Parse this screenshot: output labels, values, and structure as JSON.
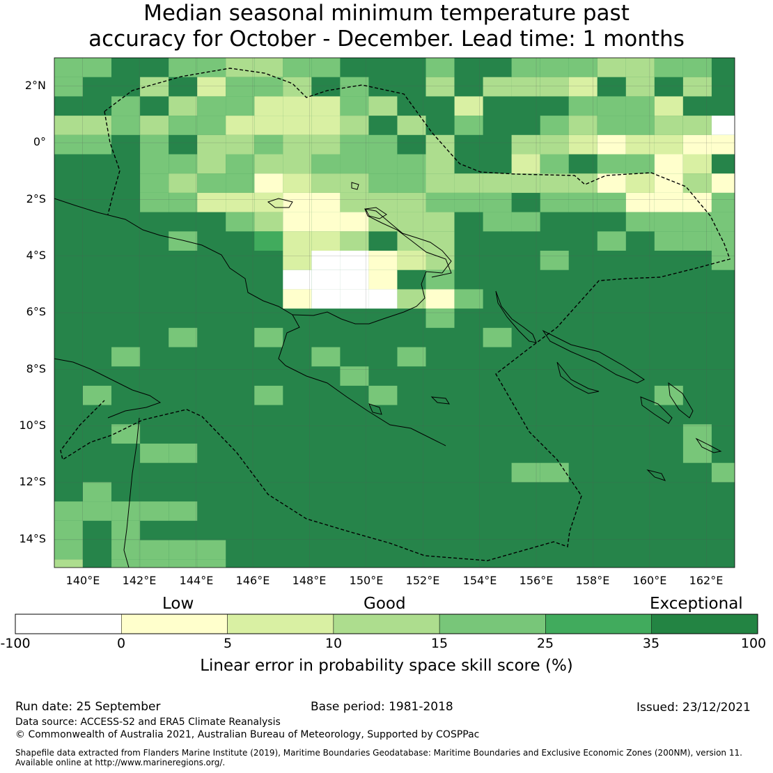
{
  "title": {
    "line1": "Median seasonal minimum temperature past",
    "line2": "accuracy for October - December. Lead time: 1 months"
  },
  "map": {
    "lat_ticks": [
      "2°N",
      "0°",
      "2°S",
      "4°S",
      "6°S",
      "8°S",
      "10°S",
      "12°S",
      "14°S"
    ],
    "lon_ticks": [
      "140°E",
      "142°E",
      "144°E",
      "146°E",
      "148°E",
      "150°E",
      "152°E",
      "154°E",
      "156°E",
      "158°E",
      "160°E",
      "162°E"
    ],
    "extent": {
      "lon_min": 139,
      "lon_max": 163,
      "lat_min": -15,
      "lat_max": 3
    },
    "grid_resolution_deg": 0.8,
    "base_color": "#26844a",
    "eez_boundary_style": "dashed black",
    "coastline_style": "solid black"
  },
  "colorbar": {
    "categories": [
      {
        "label": "Low"
      },
      {
        "label": "Good"
      },
      {
        "label": "Exceptional"
      }
    ],
    "bins": [
      {
        "from": "-100",
        "to": "0",
        "color": "#ffffff"
      },
      {
        "from": "0",
        "to": "5",
        "color": "#ffffcc"
      },
      {
        "from": "5",
        "to": "10",
        "color": "#d9f0a3"
      },
      {
        "from": "10",
        "to": "15",
        "color": "#addd8e"
      },
      {
        "from": "15",
        "to": "25",
        "color": "#78c679"
      },
      {
        "from": "25",
        "to": "35",
        "color": "#41ab5d"
      },
      {
        "from": "35",
        "to": "100",
        "color": "#238443"
      }
    ],
    "ticks": [
      "-100",
      "0",
      "5",
      "10",
      "15",
      "25",
      "35",
      "100"
    ],
    "title": "Linear error in probability space skill score (%)"
  },
  "footer": {
    "run_date": "Run date: 25 September",
    "base_period": "Base period: 1981-2018",
    "issued": "Issued: 23/12/2021",
    "data_source": "Data source: ACCESS-S2 and ERA5 Climate Reanalysis",
    "copyright": "© Commonwealth of Australia 2021, Australian Bureau of Meteorology, Supported by COSPPac",
    "shapefile_line1": "Shapefile data extracted from Flanders Marine Institute (2019), Maritime Boundaries Geodatabase: Maritime Boundaries and Exclusive Economic Zones (200NM), version 11.",
    "shapefile_line2": "Available online at http://www.marineregions.org/."
  }
}
